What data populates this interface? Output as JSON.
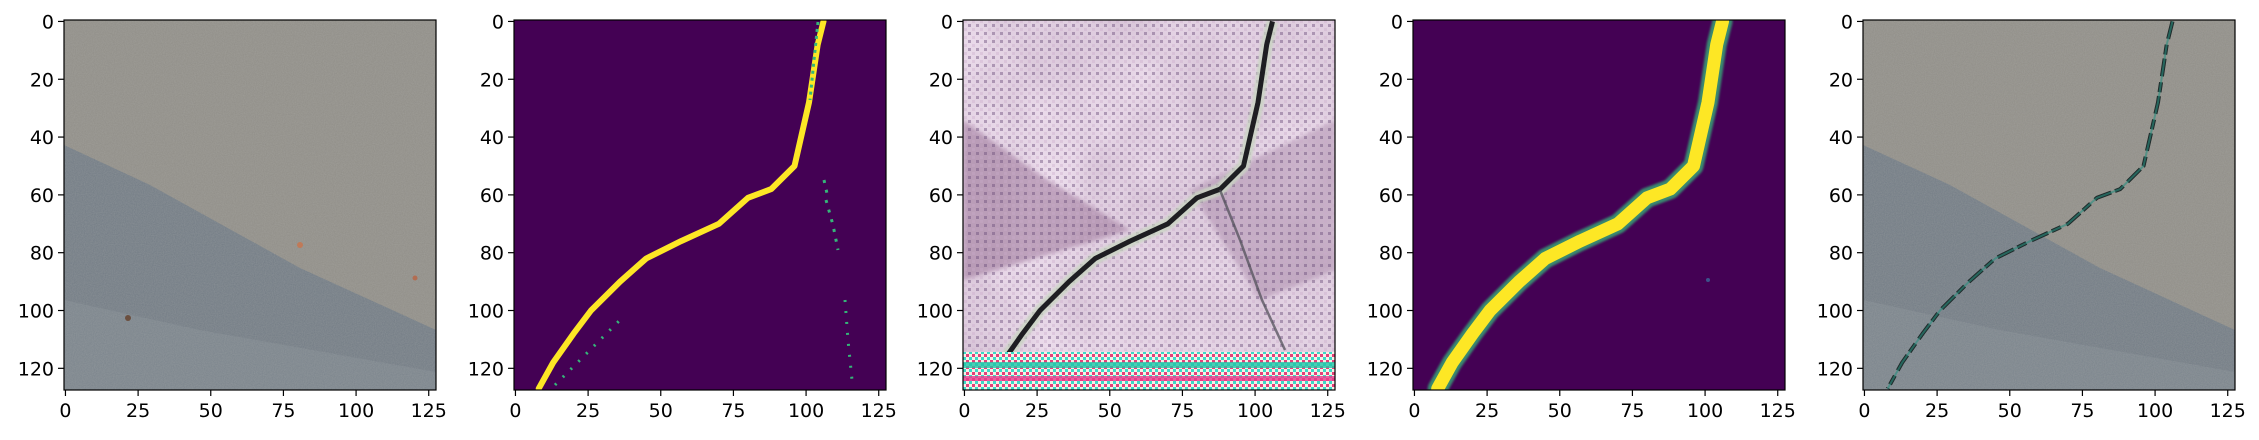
{
  "figure": {
    "panel_count": 5,
    "axis": {
      "x_ticks": [
        "0",
        "25",
        "50",
        "75",
        "100",
        "125"
      ],
      "y_ticks": [
        "0",
        "20",
        "40",
        "60",
        "80",
        "100",
        "120"
      ],
      "x_values": [
        0,
        25,
        50,
        75,
        100,
        125
      ],
      "y_values": [
        0,
        20,
        40,
        60,
        80,
        100,
        120
      ],
      "xlim": [
        -0.5,
        127.5
      ],
      "ylim": [
        127.5,
        -0.5
      ]
    },
    "panels": [
      {
        "id": "asphalt-photo",
        "kind": "rgb-image",
        "content": "pavement photograph with faint diagonal crack and darker shadow region"
      },
      {
        "id": "ground-truth-mask",
        "kind": "binary-mask",
        "colormap": "viridis",
        "content": "thin yellow crack line on purple background"
      },
      {
        "id": "generated-image",
        "kind": "rgb-image",
        "content": "synthetic texture with checkerboard artifacts and a dark crack"
      },
      {
        "id": "predicted-mask",
        "kind": "probability-mask",
        "colormap": "viridis",
        "content": "thick yellow crack band on purple background"
      },
      {
        "id": "crack-overlay",
        "kind": "rgb-image",
        "content": "pavement photograph with darker crack overlay"
      }
    ],
    "crack_path": [
      [
        106,
        0
      ],
      [
        104,
        8
      ],
      [
        101,
        28
      ],
      [
        96,
        50
      ],
      [
        88,
        58
      ],
      [
        80,
        61
      ],
      [
        70,
        70
      ],
      [
        57,
        76
      ],
      [
        45,
        82
      ],
      [
        36,
        90
      ],
      [
        26,
        100
      ],
      [
        20,
        108
      ],
      [
        13,
        118
      ],
      [
        8,
        127
      ]
    ],
    "colors": {
      "viridis_low": "#440154",
      "viridis_high": "#fde725",
      "viridis_mid": "#35b779",
      "asphalt": "#8e8c86",
      "shadow": "#6d7884"
    }
  }
}
